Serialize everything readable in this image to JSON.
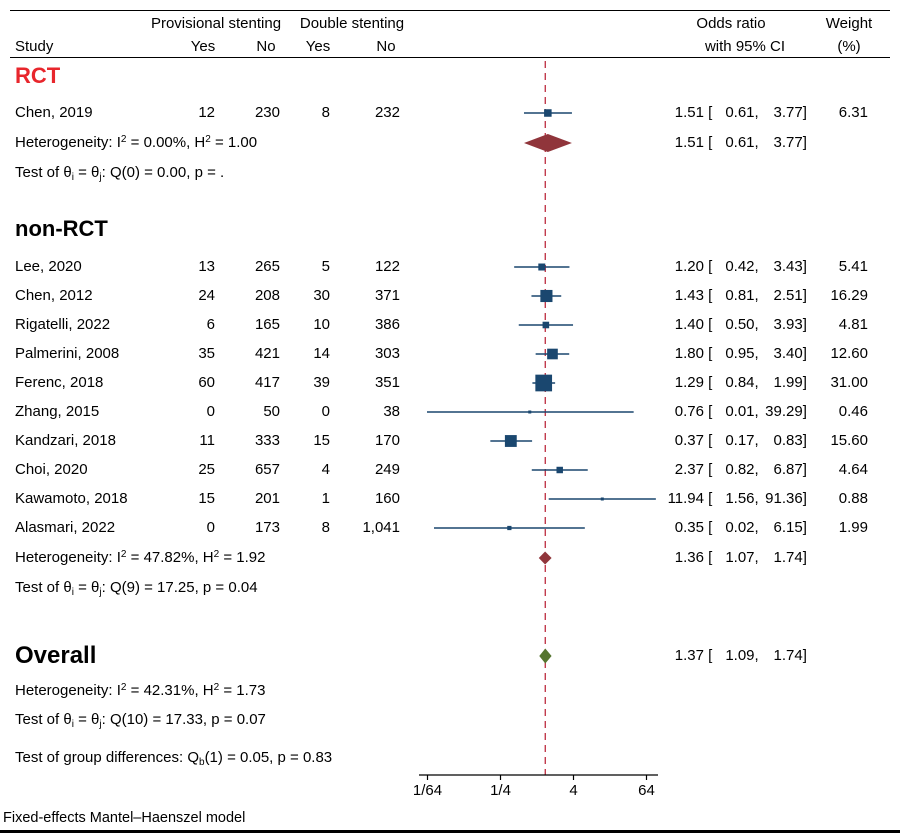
{
  "chart_data": {
    "type": "forest",
    "effect_measure": "Odds ratio",
    "columns": {
      "study": "Study",
      "provisional_stenting": "Provisional stenting",
      "double_stenting": "Double stenting",
      "yes": "Yes",
      "no": "No",
      "odds_ratio": "Odds ratio",
      "ci": "with 95% CI",
      "weight": "Weight",
      "weight_unit": "(%)"
    },
    "groups": [
      {
        "name": "RCT",
        "name_color": "#e8262c",
        "studies": [
          {
            "study": "Chen, 2019",
            "prov_yes": "12",
            "prov_no": "230",
            "dbl_yes": "8",
            "dbl_no": "232",
            "or": 1.51,
            "lo": 0.61,
            "hi": 3.77,
            "weight": 6.31
          }
        ],
        "heterogeneity": "Heterogeneity: I^2 = 0.00%, H^2 = 1.00",
        "summary": {
          "or": 1.51,
          "lo": 0.61,
          "hi": 3.77
        },
        "test": "Test of θ_i = θ_j: Q(0) = 0.00, p = ."
      },
      {
        "name": "non-RCT",
        "name_color": "#000000",
        "studies": [
          {
            "study": "Lee, 2020",
            "prov_yes": "13",
            "prov_no": "265",
            "dbl_yes": "5",
            "dbl_no": "122",
            "or": 1.2,
            "lo": 0.42,
            "hi": 3.43,
            "weight": 5.41
          },
          {
            "study": "Chen, 2012",
            "prov_yes": "24",
            "prov_no": "208",
            "dbl_yes": "30",
            "dbl_no": "371",
            "or": 1.43,
            "lo": 0.81,
            "hi": 2.51,
            "weight": 16.29
          },
          {
            "study": "Rigatelli, 2022",
            "prov_yes": "6",
            "prov_no": "165",
            "dbl_yes": "10",
            "dbl_no": "386",
            "or": 1.4,
            "lo": 0.5,
            "hi": 3.93,
            "weight": 4.81
          },
          {
            "study": "Palmerini, 2008",
            "prov_yes": "35",
            "prov_no": "421",
            "dbl_yes": "14",
            "dbl_no": "303",
            "or": 1.8,
            "lo": 0.95,
            "hi": 3.4,
            "weight": 12.6
          },
          {
            "study": "Ferenc, 2018",
            "prov_yes": "60",
            "prov_no": "417",
            "dbl_yes": "39",
            "dbl_no": "351",
            "or": 1.29,
            "lo": 0.84,
            "hi": 1.99,
            "weight": 31.0
          },
          {
            "study": "Zhang, 2015",
            "prov_yes": "0",
            "prov_no": "50",
            "dbl_yes": "0",
            "dbl_no": "38",
            "or": 0.76,
            "lo": 0.01,
            "hi": 39.29,
            "weight": 0.46
          },
          {
            "study": "Kandzari, 2018",
            "prov_yes": "11",
            "prov_no": "333",
            "dbl_yes": "15",
            "dbl_no": "170",
            "or": 0.37,
            "lo": 0.17,
            "hi": 0.83,
            "weight": 15.6
          },
          {
            "study": "Choi, 2020",
            "prov_yes": "25",
            "prov_no": "657",
            "dbl_yes": "4",
            "dbl_no": "249",
            "or": 2.37,
            "lo": 0.82,
            "hi": 6.87,
            "weight": 4.64
          },
          {
            "study": "Kawamoto, 2018",
            "prov_yes": "15",
            "prov_no": "201",
            "dbl_yes": "1",
            "dbl_no": "160",
            "or": 11.94,
            "lo": 1.56,
            "hi": 91.36,
            "weight": 0.88
          },
          {
            "study": "Alasmari, 2022",
            "prov_yes": "0",
            "prov_no": "173",
            "dbl_yes": "8",
            "dbl_no": "1,041",
            "or": 0.35,
            "lo": 0.02,
            "hi": 6.15,
            "weight": 1.99
          }
        ],
        "heterogeneity": "Heterogeneity: I^2 = 47.82%, H^2 = 1.92",
        "summary": {
          "or": 1.36,
          "lo": 1.07,
          "hi": 1.74
        },
        "test": "Test of θ_i = θ_j: Q(9) = 17.25, p = 0.04"
      }
    ],
    "overall": {
      "name": "Overall",
      "summary": {
        "or": 1.37,
        "lo": 1.09,
        "hi": 1.74
      },
      "heterogeneity": "Heterogeneity: I^2 = 42.31%, H^2 = 1.73",
      "test": "Test of θ_i = θ_j: Q(10) = 17.33, p = 0.07",
      "group_difference": "Test of group differences: Q_b(1) = 0.05, p = 0.83"
    },
    "axis": {
      "scale": "log",
      "ticks": [
        {
          "label": "1/64",
          "value": 0.015625
        },
        {
          "label": "1/4",
          "value": 0.25
        },
        {
          "label": "4",
          "value": 4
        },
        {
          "label": "64",
          "value": 64
        }
      ]
    },
    "reference_line_value": 1.37,
    "colors": {
      "marker": "#1a476f",
      "subgroup_diamond": "#90353b",
      "overall_diamond": "#55752f",
      "reference_line": "#c13a4d",
      "rct_label": "#e8262c"
    },
    "footer": "Fixed-effects Mantel–Haenszel model"
  }
}
